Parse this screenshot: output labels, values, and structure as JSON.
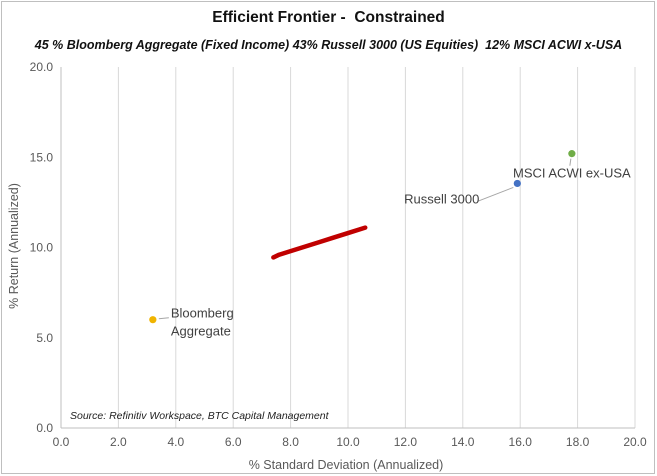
{
  "chart_data": {
    "type": "scatter",
    "title": "Efficient Frontier -  Constrained",
    "subtitle": "45 % Bloomberg Aggregate (Fixed Income) 43% Russell 3000 (US Equities)  12% MSCI ACWI x-USA",
    "xlabel": "% Standard Deviation (Annualized)",
    "ylabel": "% Return (Annualized)",
    "xlim": [
      0,
      20
    ],
    "ylim": [
      0,
      20
    ],
    "x_ticks": [
      "0.0",
      "2.0",
      "4.0",
      "6.0",
      "8.0",
      "10.0",
      "12.0",
      "14.0",
      "16.0",
      "18.0",
      "20.0"
    ],
    "y_ticks": [
      "0.0",
      "5.0",
      "10.0",
      "15.0",
      "20.0"
    ],
    "grid": "vertical",
    "source": "Source: Refinitiv Workspace, BTC Capital Management",
    "series": [
      {
        "name": "",
        "color": "#c00000",
        "style": "line",
        "points": [
          [
            7.4,
            9.45
          ],
          [
            7.6,
            9.6
          ],
          [
            8.0,
            9.8
          ],
          [
            8.5,
            10.05
          ],
          [
            9.0,
            10.3
          ],
          [
            9.5,
            10.55
          ],
          [
            10.0,
            10.8
          ],
          [
            10.6,
            11.1
          ]
        ]
      }
    ],
    "annotations": [
      {
        "label": "Bloomberg",
        "label2": "Aggregate",
        "x": 3.2,
        "y": 6.0,
        "color": "#f0b400"
      },
      {
        "label": "Russell 3000",
        "label2": "",
        "x": 15.9,
        "y": 13.55,
        "color": "#4472c4"
      },
      {
        "label": "MSCI ACWI ex-USA",
        "label2": "",
        "x": 17.8,
        "y": 15.2,
        "color": "#70ad47"
      }
    ]
  }
}
